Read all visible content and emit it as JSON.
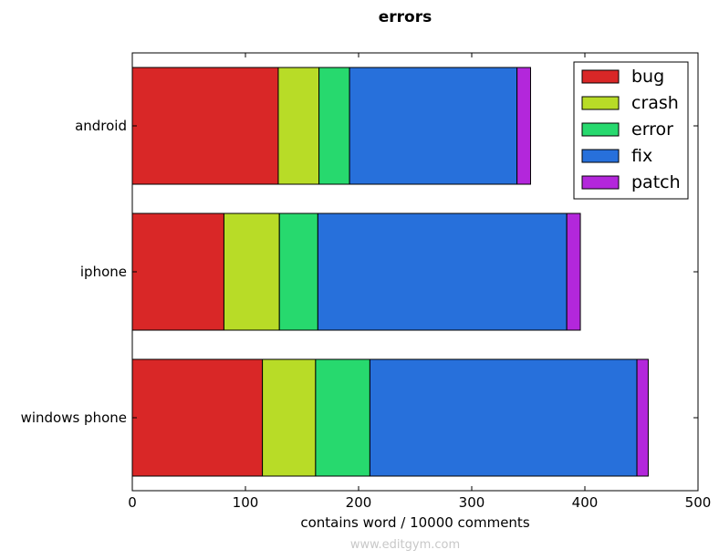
{
  "watermark": "www.editgym.com",
  "chart_data": {
    "type": "bar",
    "orientation": "horizontal",
    "stacked": true,
    "title": "errors",
    "xlabel": "contains word / 10000 comments",
    "ylabel": "",
    "xlim": [
      0,
      500
    ],
    "xticks": [
      0,
      100,
      200,
      300,
      400,
      500
    ],
    "categories": [
      "android",
      "iphone",
      "windows phone"
    ],
    "series": [
      {
        "name": "bug",
        "color": "#d92727",
        "values": [
          129,
          81,
          115
        ]
      },
      {
        "name": "crash",
        "color": "#b8dc27",
        "values": [
          36,
          49,
          47
        ]
      },
      {
        "name": "error",
        "color": "#27d96e",
        "values": [
          27,
          34,
          48
        ]
      },
      {
        "name": "fix",
        "color": "#2770db",
        "values": [
          148,
          220,
          236
        ]
      },
      {
        "name": "patch",
        "color": "#b327db",
        "values": [
          12,
          12,
          10
        ]
      }
    ],
    "legend": {
      "position": "top-right"
    },
    "grid": false
  }
}
